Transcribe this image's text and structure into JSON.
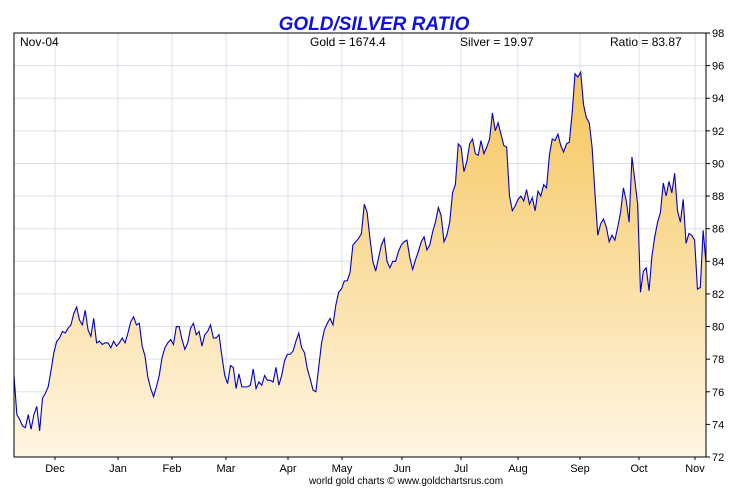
{
  "header": {
    "title": "GOLD/SILVER RATIO",
    "date": "Nov-04",
    "gold": "Gold = 1674.4",
    "silver": "Silver = 19.97",
    "ratio": "Ratio = 83.87"
  },
  "footer": "world gold charts © www.goldchartsrus.com",
  "colors": {
    "title": "#1010e0",
    "line": "#0000cc",
    "fill_top": "#f5c55a",
    "fill_bottom": "#fff6e4",
    "grid": "#d8e0ea"
  },
  "chart_data": {
    "type": "area",
    "title": "GOLD/SILVER RATIO",
    "xlabel": "",
    "ylabel": "",
    "ylim": [
      72,
      98
    ],
    "yticks": [
      "98",
      "96",
      "94",
      "92",
      "90",
      "88",
      "86",
      "84",
      "82",
      "80",
      "78",
      "76",
      "74",
      "72"
    ],
    "xticks": [
      "Dec",
      "Jan",
      "Feb",
      "Mar",
      "Apr",
      "May",
      "Jun",
      "Jul",
      "Aug",
      "Sep",
      "Oct",
      "Nov"
    ],
    "grid": true,
    "legend": "none",
    "series": [
      {
        "values": [
          77.0,
          74.6,
          74.3,
          73.9,
          73.8,
          74.6,
          73.7,
          74.6,
          75.1,
          73.6,
          75.6,
          75.9,
          76.3,
          77.3,
          78.4,
          79.1,
          79.3,
          79.7,
          79.6,
          79.9,
          80.1,
          80.8,
          81.2,
          80.4,
          80.1,
          81.0,
          79.8,
          79.4,
          80.5,
          79.0,
          79.1,
          78.9,
          79.0,
          79.0,
          78.7,
          79.1,
          78.8,
          79.0,
          79.3,
          79.0,
          79.6,
          80.3,
          80.6,
          80.1,
          80.2,
          78.8,
          78.2,
          76.9,
          76.2,
          75.7,
          76.3,
          77.0,
          78.1,
          78.7,
          79.0,
          79.2,
          78.9,
          80.0,
          80.0,
          79.2,
          78.6,
          79.0,
          79.9,
          80.2,
          79.5,
          79.7,
          78.8,
          79.5,
          79.7,
          80.1,
          79.3,
          79.3,
          79.5,
          78.2,
          77.0,
          76.5,
          77.6,
          77.5,
          76.2,
          77.1,
          76.3,
          76.3,
          76.3,
          76.4,
          77.4,
          76.2,
          76.6,
          76.4,
          77.0,
          76.7,
          76.7,
          76.6,
          77.5,
          76.4,
          77.0,
          77.9,
          78.3,
          78.3,
          78.5,
          79.1,
          79.6,
          78.7,
          78.4,
          77.4,
          76.8,
          76.1,
          76.0,
          77.5,
          79.0,
          79.8,
          80.2,
          80.5,
          80.1,
          81.3,
          82.1,
          82.3,
          82.8,
          82.8,
          83.3,
          85.0,
          85.2,
          85.4,
          85.7,
          87.5,
          87.0,
          85.4,
          84.0,
          83.4,
          84.2,
          85.0,
          85.4,
          84.0,
          83.6,
          84.0,
          84.0,
          84.6,
          85.0,
          85.2,
          85.3,
          84.2,
          83.5,
          84.1,
          84.6,
          85.2,
          85.5,
          84.7,
          85.0,
          85.8,
          86.4,
          87.3,
          86.8,
          85.2,
          85.6,
          86.4,
          88.2,
          88.7,
          91.2,
          91.0,
          89.5,
          90.1,
          91.2,
          91.5,
          90.6,
          90.5,
          91.4,
          90.6,
          91.0,
          91.5,
          93.1,
          92.0,
          92.5,
          91.8,
          91.1,
          91.0,
          88.0,
          87.1,
          87.4,
          87.8,
          88.0,
          87.7,
          88.4,
          87.5,
          87.9,
          87.1,
          88.3,
          88.0,
          88.7,
          88.5,
          90.5,
          91.5,
          91.4,
          91.8,
          91.1,
          90.7,
          91.2,
          91.3,
          93.1,
          95.5,
          95.3,
          95.6,
          93.6,
          92.8,
          92.5,
          91.0,
          88.2,
          85.6,
          86.3,
          86.6,
          86.1,
          85.2,
          85.6,
          85.3,
          86.1,
          87.0,
          88.5,
          87.7,
          86.4,
          90.4,
          89.0,
          87.5,
          82.1,
          83.4,
          83.6,
          82.2,
          84.3,
          85.5,
          86.4,
          87.0,
          88.8,
          88.0,
          88.9,
          88.2,
          89.4,
          87.1,
          86.4,
          87.8,
          85.1,
          85.7,
          85.6,
          85.3,
          82.3,
          82.4,
          85.9,
          83.9
        ]
      }
    ]
  }
}
